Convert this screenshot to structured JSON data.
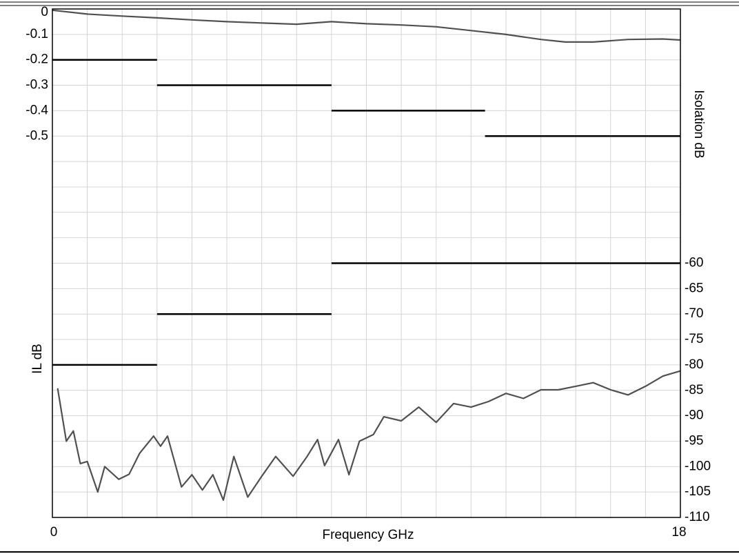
{
  "chart_data": {
    "type": "line",
    "x_label": "Frequency GHz",
    "y_label": "IL dB",
    "y2_label": "Isolation dB",
    "xlim": [
      0,
      18
    ],
    "xticks": [
      0,
      18
    ],
    "x_minor_ticks": [
      1,
      2,
      3,
      4,
      5,
      6,
      7,
      8,
      9,
      10,
      11,
      12,
      13,
      14,
      15,
      16,
      17
    ],
    "ylim": [
      -2,
      0
    ],
    "yticks": [
      0,
      -0.1,
      -0.2,
      -0.3,
      -0.4,
      -0.5
    ],
    "y2lim": [
      -110,
      -10
    ],
    "y2ticks": [
      -60,
      -65,
      -70,
      -75,
      -80,
      -85,
      -90,
      -95,
      -100,
      -105,
      -110
    ],
    "y2_minor_ticks": [
      -40,
      -45,
      -50,
      -55
    ],
    "grid": true,
    "series": [
      {
        "color": "#505050",
        "x": [
          0,
          1,
          2,
          3,
          4,
          5,
          6,
          7,
          8,
          9,
          10,
          11,
          12,
          13,
          14,
          14.7,
          15.5,
          16.5,
          17.5,
          18
        ],
        "values": [
          -0.005,
          -0.02,
          -0.028,
          -0.035,
          -0.043,
          -0.05,
          -0.055,
          -0.06,
          -0.05,
          -0.058,
          -0.063,
          -0.07,
          -0.085,
          -0.1,
          -0.12,
          -0.13,
          -0.13,
          -0.12,
          -0.118,
          -0.122
        ]
      },
      {
        "color": "#505050",
        "axis": "y2",
        "x": [
          0.15,
          0.4,
          0.6,
          0.8,
          1.0,
          1.3,
          1.5,
          1.9,
          2.2,
          2.5,
          2.9,
          3.1,
          3.3,
          3.7,
          4.0,
          4.3,
          4.6,
          4.9,
          5.2,
          5.6,
          6.0,
          6.4,
          6.9,
          7.3,
          7.6,
          7.8,
          8.2,
          8.5,
          8.8,
          9.2,
          9.5,
          10,
          10.5,
          11,
          11.5,
          12,
          12.5,
          13,
          13.5,
          14,
          14.5,
          15,
          15.5,
          16,
          16.5,
          17,
          17.5,
          18
        ],
        "values": [
          -84.6,
          -95,
          -93,
          -99.4,
          -99,
          -105,
          -100,
          -102.5,
          -101.5,
          -97.4,
          -94,
          -96,
          -94,
          -104,
          -101.6,
          -104.6,
          -101.6,
          -106.6,
          -98,
          -106,
          -101.9,
          -98,
          -101.9,
          -98,
          -94.7,
          -99.8,
          -94.7,
          -101.6,
          -95,
          -93.7,
          -90.2,
          -91,
          -88.3,
          -91.3,
          -87.6,
          -88.3,
          -87.2,
          -85.6,
          -86.6,
          -84.9,
          -84.9,
          -84.2,
          -83.5,
          -84.9,
          -85.9,
          -84.2,
          -82.2,
          -81.2
        ]
      }
    ],
    "limit_color": "#000000",
    "il_limits": [
      {
        "x": [
          0,
          3
        ],
        "y": -0.2
      },
      {
        "x": [
          3,
          8
        ],
        "y": -0.3
      },
      {
        "x": [
          8,
          12.4
        ],
        "y": -0.4
      },
      {
        "x": [
          12.4,
          18
        ],
        "y": -0.5
      }
    ],
    "isolation_limits": [
      {
        "x": [
          0,
          3
        ],
        "y": -80
      },
      {
        "x": [
          3,
          8
        ],
        "y": -70
      },
      {
        "x": [
          8,
          18
        ],
        "y": -60
      }
    ]
  }
}
